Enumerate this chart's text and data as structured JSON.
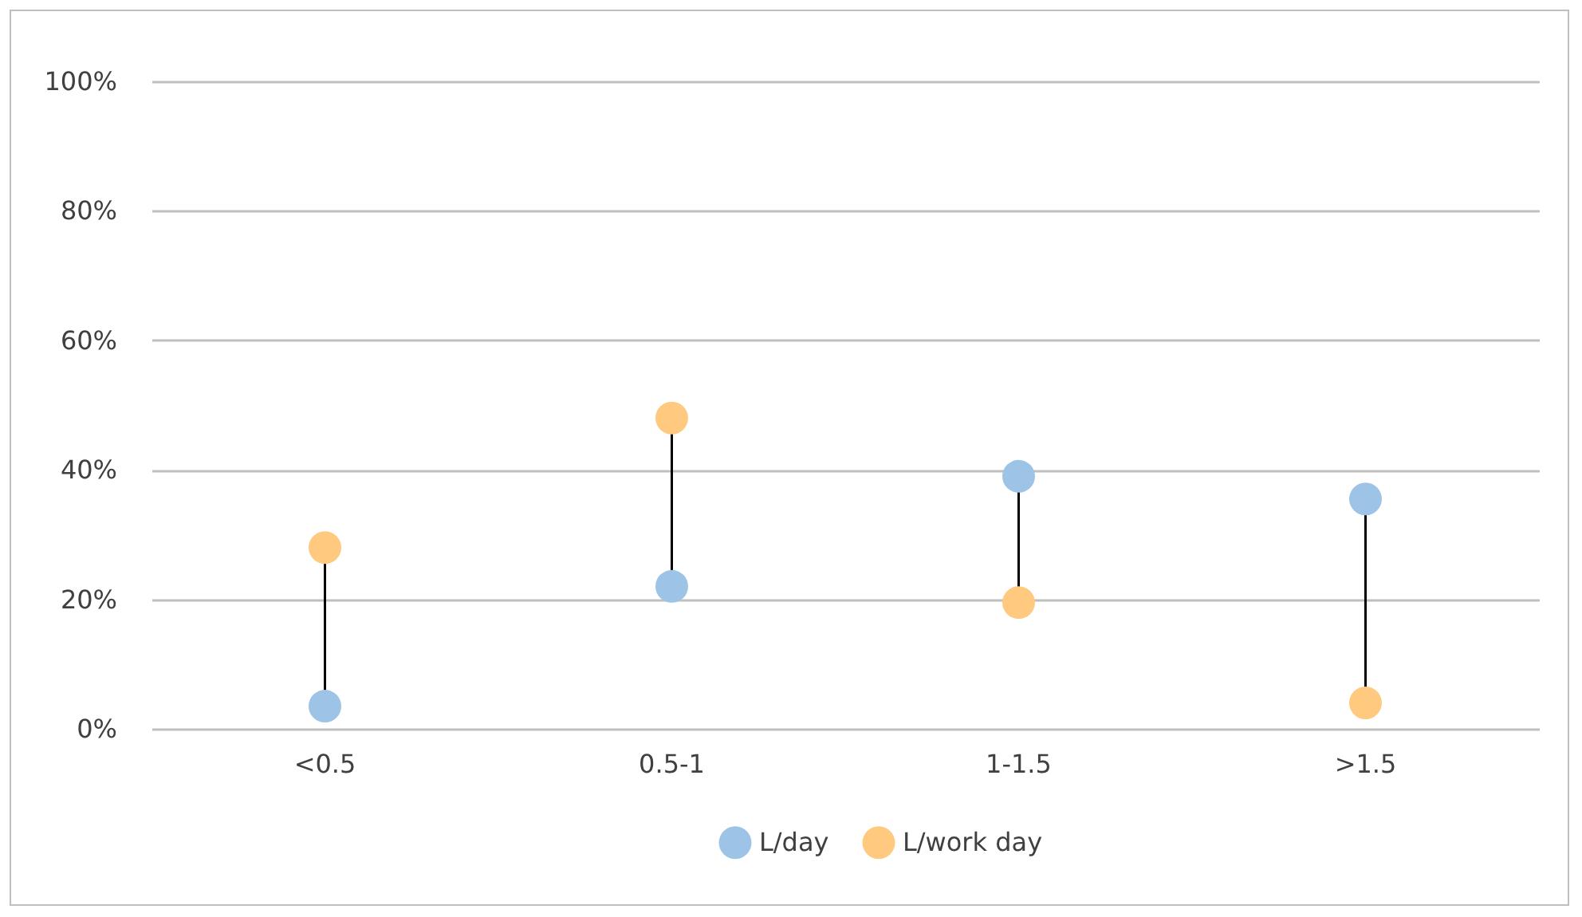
{
  "chart_data": {
    "type": "scatter",
    "categories": [
      "<0.5",
      "0.5-1",
      "1-1.5",
      ">1.5"
    ],
    "series": [
      {
        "name": "L/day",
        "color": "#9dc3e6",
        "values": [
          3.5,
          22,
          39,
          35.5
        ]
      },
      {
        "name": "L/work day",
        "color": "#ffc980",
        "values": [
          28,
          48,
          19.5,
          4
        ]
      }
    ],
    "ylim": [
      0,
      100
    ],
    "yticks": [
      {
        "value": 0,
        "label": "0%"
      },
      {
        "value": 20,
        "label": "20%"
      },
      {
        "value": 40,
        "label": "40%"
      },
      {
        "value": 60,
        "label": "60%"
      },
      {
        "value": 80,
        "label": "80%"
      },
      {
        "value": 100,
        "label": "100%"
      }
    ],
    "grid": "y",
    "legend": "bottom",
    "marker": "circle"
  }
}
